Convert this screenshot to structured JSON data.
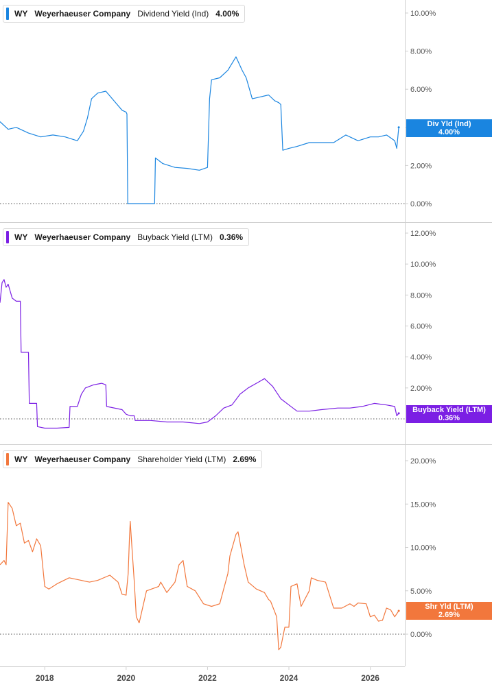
{
  "panels": [
    {
      "ticker": "WY",
      "company": "Weyerhaeuser Company",
      "metric": "Dividend Yield (Ind)",
      "value": "4.00%",
      "tag_label": "Div Yld (Ind)",
      "tag_value": "4.00%",
      "color": "#1a85e0"
    },
    {
      "ticker": "WY",
      "company": "Weyerhaeuser Company",
      "metric": "Buyback Yield (LTM)",
      "value": "0.36%",
      "tag_label": "Buyback Yield (LTM)",
      "tag_value": "0.36%",
      "color": "#7b1fe4"
    },
    {
      "ticker": "WY",
      "company": "Weyerhaeuser Company",
      "metric": "Shareholder Yield (LTM)",
      "value": "2.69%",
      "tag_label": "Shr Yld (LTM)",
      "tag_value": "2.69%",
      "color": "#f2773c"
    }
  ],
  "x_axis_labels": [
    "2018",
    "2020",
    "2022",
    "2024",
    "2026"
  ],
  "chart_data": [
    {
      "type": "line",
      "title": "",
      "xlabel": "",
      "ylabel": "",
      "x_range": [
        2016.9,
        2026.8
      ],
      "ylim": [
        0,
        10.5
      ],
      "ytick_labels": [
        "0.00%",
        "2.00%",
        "4.00%",
        "6.00%",
        "8.00%",
        "10.00%"
      ],
      "ytick_values": [
        0,
        2,
        4,
        6,
        8,
        10
      ],
      "series": [
        {
          "name": "Dividend Yield (Ind)",
          "x": [
            2016.9,
            2017.1,
            2017.3,
            2017.6,
            2017.9,
            2018.2,
            2018.5,
            2018.8,
            2018.95,
            2019.05,
            2019.15,
            2019.3,
            2019.5,
            2019.7,
            2019.9,
            2020.0,
            2020.02,
            2020.04,
            2020.7,
            2020.72,
            2020.9,
            2021.2,
            2021.5,
            2021.8,
            2022.0,
            2022.05,
            2022.1,
            2022.3,
            2022.5,
            2022.7,
            2022.85,
            2022.95,
            2023.1,
            2023.3,
            2023.5,
            2023.65,
            2023.75,
            2023.8,
            2023.85,
            2024.0,
            2024.2,
            2024.5,
            2024.8,
            2025.1,
            2025.4,
            2025.7,
            2026.0,
            2026.2,
            2026.4,
            2026.6,
            2026.65,
            2026.7
          ],
          "values": [
            4.3,
            3.9,
            4.0,
            3.7,
            3.5,
            3.6,
            3.5,
            3.3,
            3.8,
            4.5,
            5.5,
            5.8,
            5.9,
            5.4,
            4.9,
            4.8,
            4.7,
            0,
            0,
            2.4,
            2.1,
            1.9,
            1.85,
            1.75,
            1.9,
            5.5,
            6.5,
            6.6,
            7.0,
            7.7,
            7.0,
            6.6,
            5.5,
            5.6,
            5.7,
            5.4,
            5.3,
            5.2,
            2.8,
            2.9,
            3.0,
            3.2,
            3.2,
            3.2,
            3.6,
            3.3,
            3.5,
            3.5,
            3.6,
            3.3,
            2.9,
            4.0
          ]
        }
      ]
    },
    {
      "type": "line",
      "title": "",
      "xlabel": "",
      "ylabel": "",
      "x_range": [
        2016.9,
        2026.8
      ],
      "ylim": [
        0,
        12.5
      ],
      "ytick_labels": [
        "2.00%",
        "4.00%",
        "6.00%",
        "8.00%",
        "10.00%",
        "12.00%"
      ],
      "ytick_values": [
        2,
        4,
        6,
        8,
        10,
        12
      ],
      "series": [
        {
          "name": "Buyback Yield (LTM)",
          "x": [
            2016.9,
            2016.95,
            2017.0,
            2017.05,
            2017.1,
            2017.2,
            2017.3,
            2017.4,
            2017.42,
            2017.5,
            2017.6,
            2017.62,
            2017.8,
            2017.82,
            2018.0,
            2018.3,
            2018.6,
            2018.62,
            2018.8,
            2018.9,
            2019.0,
            2019.2,
            2019.4,
            2019.5,
            2019.52,
            2019.9,
            2020.0,
            2020.1,
            2020.2,
            2020.22,
            2020.6,
            2021.0,
            2021.4,
            2021.8,
            2022.0,
            2022.2,
            2022.4,
            2022.6,
            2022.8,
            2023.0,
            2023.2,
            2023.4,
            2023.6,
            2023.8,
            2024.0,
            2024.2,
            2024.5,
            2024.8,
            2025.2,
            2025.5,
            2025.8,
            2026.1,
            2026.4,
            2026.6,
            2026.65,
            2026.7
          ],
          "values": [
            7.5,
            8.8,
            9.0,
            8.5,
            8.7,
            7.8,
            7.6,
            7.6,
            4.3,
            4.3,
            4.3,
            1.0,
            1.0,
            -0.5,
            -0.6,
            -0.6,
            -0.55,
            0.8,
            0.8,
            1.6,
            2.0,
            2.2,
            2.3,
            2.2,
            0.8,
            0.6,
            0.3,
            0.2,
            0.2,
            -0.1,
            -0.1,
            -0.2,
            -0.2,
            -0.3,
            -0.2,
            0.2,
            0.7,
            0.9,
            1.6,
            2.0,
            2.3,
            2.6,
            2.1,
            1.3,
            0.9,
            0.5,
            0.5,
            0.6,
            0.7,
            0.7,
            0.8,
            1.0,
            0.9,
            0.8,
            0.2,
            0.36
          ]
        }
      ]
    },
    {
      "type": "line",
      "title": "",
      "xlabel": "",
      "ylabel": "",
      "x_range": [
        2016.9,
        2026.8
      ],
      "ylim": [
        -2.5,
        22
      ],
      "ytick_labels": [
        "0.00%",
        "5.00%",
        "10.00%",
        "15.00%",
        "20.00%"
      ],
      "ytick_values": [
        0,
        5,
        10,
        15,
        20
      ],
      "series": [
        {
          "name": "Shareholder Yield (LTM)",
          "x": [
            2016.9,
            2017.0,
            2017.05,
            2017.1,
            2017.2,
            2017.3,
            2017.4,
            2017.5,
            2017.6,
            2017.7,
            2017.8,
            2017.9,
            2018.0,
            2018.1,
            2018.3,
            2018.6,
            2018.9,
            2019.1,
            2019.3,
            2019.6,
            2019.8,
            2019.9,
            2020.0,
            2020.05,
            2020.08,
            2020.1,
            2020.15,
            2020.2,
            2020.25,
            2020.3,
            2020.32,
            2020.5,
            2020.8,
            2020.85,
            2021.0,
            2021.2,
            2021.3,
            2021.4,
            2021.5,
            2021.7,
            2021.9,
            2022.1,
            2022.3,
            2022.5,
            2022.55,
            2022.7,
            2022.75,
            2022.9,
            2023.0,
            2023.2,
            2023.4,
            2023.5,
            2023.55,
            2023.7,
            2023.75,
            2023.8,
            2023.9,
            2024.0,
            2024.05,
            2024.2,
            2024.3,
            2024.5,
            2024.55,
            2024.7,
            2024.9,
            2025.1,
            2025.3,
            2025.5,
            2025.6,
            2025.7,
            2025.9,
            2026.0,
            2026.1,
            2026.2,
            2026.3,
            2026.4,
            2026.5,
            2026.6,
            2026.7
          ],
          "values": [
            8.0,
            8.5,
            8.0,
            15.2,
            14.5,
            12.5,
            12.8,
            10.5,
            10.8,
            9.5,
            11.0,
            10.2,
            5.5,
            5.2,
            5.8,
            6.5,
            6.2,
            6.0,
            6.2,
            6.8,
            6.0,
            4.6,
            4.5,
            7.0,
            11.0,
            13.0,
            9.5,
            6.0,
            2.0,
            1.5,
            1.3,
            5.0,
            5.5,
            6.0,
            4.8,
            6.0,
            8.0,
            8.5,
            5.5,
            5.0,
            3.5,
            3.2,
            3.5,
            7.0,
            9.0,
            11.5,
            11.8,
            8.0,
            6.0,
            5.2,
            4.8,
            4.0,
            3.8,
            2.0,
            -1.8,
            -1.5,
            0.8,
            0.8,
            5.5,
            5.8,
            3.2,
            5.0,
            6.5,
            6.2,
            6.0,
            3.0,
            3.0,
            3.5,
            3.2,
            3.6,
            3.5,
            2.0,
            2.2,
            1.5,
            1.6,
            3.0,
            2.8,
            2.0,
            2.69
          ]
        }
      ]
    }
  ]
}
